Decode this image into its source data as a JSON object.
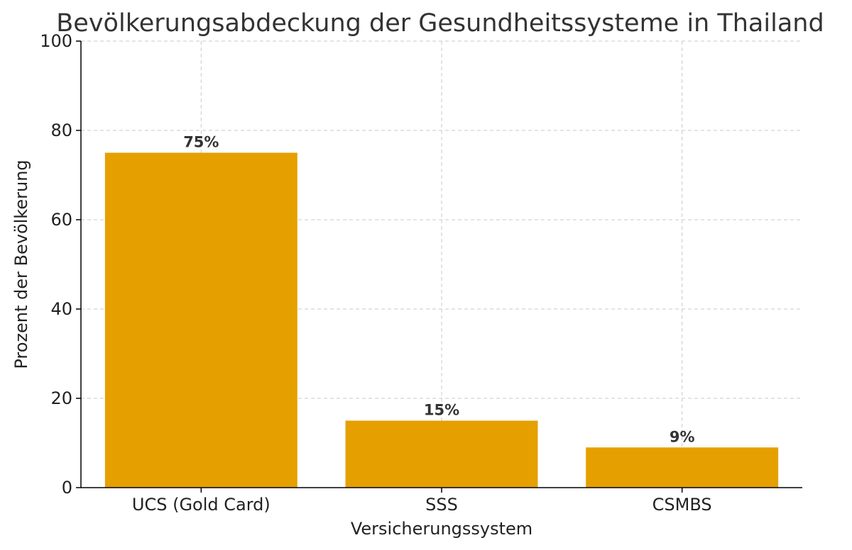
{
  "chart_data": {
    "type": "bar",
    "title": "Bevölkerungsabdeckung der Gesundheitssysteme in Thailand",
    "xlabel": "Versicherungssystem",
    "ylabel": "Prozent der Bevölkerung",
    "categories": [
      "UCS (Gold Card)",
      "SSS",
      "CSMBS"
    ],
    "values": [
      75,
      15,
      9
    ],
    "data_labels": [
      "75%",
      "15%",
      "9%"
    ],
    "ylim": [
      0,
      100
    ],
    "yticks": [
      0,
      20,
      40,
      60,
      80,
      100
    ],
    "ytick_labels": [
      "0",
      "20",
      "40",
      "60",
      "80",
      "100"
    ],
    "grid": true,
    "bar_color": "#E5A000",
    "legend": "none"
  }
}
